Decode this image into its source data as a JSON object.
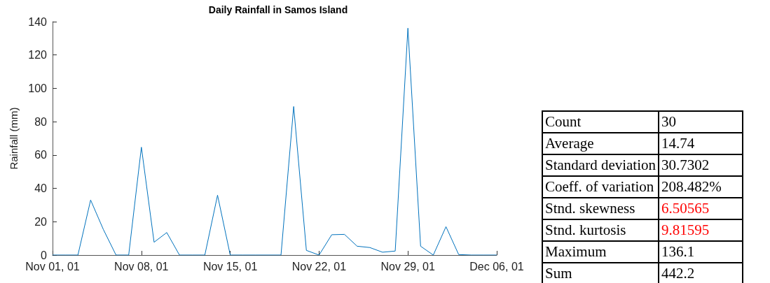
{
  "chart_data": [
    {
      "type": "line",
      "title": "Daily Rainfall in Samos Island",
      "ylabel": "Rainfall (mm)",
      "x": [
        "--11-01",
        "--11-02",
        "--11-03",
        "--11-04",
        "--11-05",
        "--11-06",
        "--11-07",
        "--11-08",
        "--11-09",
        "--11-10",
        "--11-11",
        "--11-12",
        "--11-13",
        "--11-14",
        "--11-15",
        "--11-16",
        "--11-17",
        "--11-18",
        "--11-19",
        "--11-20",
        "--11-21",
        "--11-22",
        "--11-23",
        "--11-24",
        "--11-25",
        "--11-26",
        "--11-27",
        "--11-28",
        "--11-29",
        "--11-30",
        "--12-01",
        "--12-02",
        "--12-03",
        "--12-04",
        "--12-05",
        "--12-06"
      ],
      "series": [
        {
          "color": "#0072bd",
          "values": [
            0,
            0,
            0,
            33,
            15.4,
            0,
            0,
            64.7,
            7.7,
            13.5,
            0,
            0,
            0,
            35.9,
            0,
            0,
            0,
            0,
            0,
            89.1,
            2.8,
            0,
            12.2,
            12.4,
            5.3,
            4.5,
            1.7,
            2.4,
            136.1,
            5.3,
            0,
            17,
            0.3,
            0,
            0,
            0
          ]
        }
      ],
      "xlim": [
        "--11-01",
        "--12-06"
      ],
      "xticks": [
        {
          "value": "--11-01",
          "label": "Nov 01, 01"
        },
        {
          "value": "--11-08",
          "label": "Nov 08, 01"
        },
        {
          "value": "--11-15",
          "label": "Nov 15, 01"
        },
        {
          "value": "--11-22",
          "label": "Nov 22, 01"
        },
        {
          "value": "--11-29",
          "label": "Nov 29, 01"
        },
        {
          "value": "--12-06",
          "label": "Dec 06, 01"
        }
      ],
      "ylim": [
        0,
        140
      ],
      "yticks": [
        0,
        20,
        40,
        60,
        80,
        100,
        120,
        140
      ],
      "grid": false,
      "marker": "none",
      "line_style": "solid"
    },
    {
      "type": "other",
      "categories": [
        "Count",
        "Average",
        "Standard deviation",
        "Coeff. of variation",
        "Stnd. skewness",
        "Stnd. kurtosis",
        "Maximum",
        "Sum"
      ],
      "value_labels": [
        "30",
        "14.74",
        "30.7302",
        "208.482%",
        "6.50565",
        "9.81595",
        "136.1",
        "442.2"
      ],
      "colors": [
        "#000000",
        "#000000",
        "#000000",
        "#000000",
        "#ff0000",
        "#ff0000",
        "#000000",
        "#000000"
      ]
    }
  ]
}
